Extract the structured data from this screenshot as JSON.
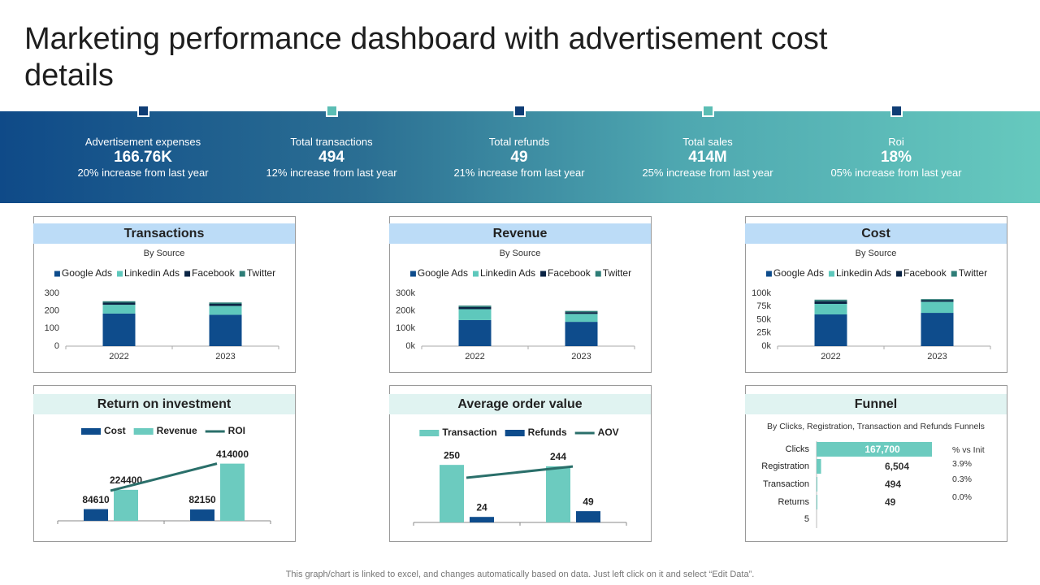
{
  "title": "Marketing performance dashboard with advertisement cost details",
  "kpis": [
    {
      "label": "Advertisement expenses",
      "value": "166.76K",
      "note": "20% increase from last year"
    },
    {
      "label": "Total transactions",
      "value": "494",
      "note": "12% increase from last year"
    },
    {
      "label": "Total refunds",
      "value": "49",
      "note": "21% increase from last year"
    },
    {
      "label": "Total sales",
      "value": "414M",
      "note": "25% increase from last year"
    },
    {
      "label": "Roi",
      "value": "18%",
      "note": "05% increase from last year"
    }
  ],
  "chart_data": [
    {
      "type": "bar",
      "stacked": true,
      "title": "Transactions",
      "subtitle": "By Source",
      "grid": false,
      "categories": [
        "2022",
        "2023"
      ],
      "series": [
        {
          "name": "Google Ads",
          "color": "#0e4c8c",
          "values": [
            185,
            178
          ]
        },
        {
          "name": "Linkedin Ads",
          "color": "#5ec8bc",
          "values": [
            50,
            50
          ]
        },
        {
          "name": "Facebook",
          "color": "#0b2545",
          "values": [
            12,
            12
          ]
        },
        {
          "name": "Twitter",
          "color": "#2e7d77",
          "values": [
            8,
            8
          ]
        }
      ],
      "ylim": [
        0,
        300
      ],
      "yticks": [
        0,
        100,
        200,
        300
      ]
    },
    {
      "type": "bar",
      "stacked": true,
      "title": "Revenue",
      "subtitle": "By Source",
      "grid": false,
      "categories": [
        "2022",
        "2023"
      ],
      "series": [
        {
          "name": "Google Ads",
          "color": "#0e4c8c",
          "values": [
            148000,
            138000
          ]
        },
        {
          "name": "Linkedin Ads",
          "color": "#5ec8bc",
          "values": [
            62000,
            45000
          ]
        },
        {
          "name": "Facebook",
          "color": "#0b2545",
          "values": [
            12000,
            10000
          ]
        },
        {
          "name": "Twitter",
          "color": "#2e7d77",
          "values": [
            8000,
            7000
          ]
        }
      ],
      "ylim": [
        0,
        300000
      ],
      "yticks": [
        {
          "value": 0,
          "label": "0k"
        },
        {
          "value": 100000,
          "label": "100k"
        },
        {
          "value": 200000,
          "label": "200k"
        },
        {
          "value": 300000,
          "label": "300k"
        }
      ]
    },
    {
      "type": "bar",
      "stacked": true,
      "title": "Cost",
      "subtitle": "By Source",
      "grid": false,
      "categories": [
        "2022",
        "2023"
      ],
      "series": [
        {
          "name": "Google Ads",
          "color": "#0e4c8c",
          "values": [
            60000,
            63000
          ]
        },
        {
          "name": "Linkedin Ads",
          "color": "#5ec8bc",
          "values": [
            20000,
            21000
          ]
        },
        {
          "name": "Facebook",
          "color": "#0b2545",
          "values": [
            5000,
            3000
          ]
        },
        {
          "name": "Twitter",
          "color": "#2e7d77",
          "values": [
            3000,
            2000
          ]
        }
      ],
      "ylim": [
        0,
        100000
      ],
      "yticks": [
        {
          "value": 0,
          "label": "0k"
        },
        {
          "value": 25000,
          "label": "25k"
        },
        {
          "value": 50000,
          "label": "50k"
        },
        {
          "value": 75000,
          "label": "75k"
        },
        {
          "value": 100000,
          "label": "100k"
        }
      ]
    },
    {
      "type": "combo",
      "title": "Return on investment",
      "categories": [
        null,
        null
      ],
      "series": [
        {
          "name": "Cost",
          "color": "#0e4c8c",
          "values": [
            84610,
            82150
          ]
        },
        {
          "name": "Revenue",
          "color": "#6ccbbf",
          "values": [
            224400,
            414000
          ]
        },
        {
          "name": "ROI",
          "type": "line",
          "color": "#2a6f6a",
          "values": [
            218000,
            414000
          ]
        }
      ],
      "ylim": [
        0,
        500000
      ]
    },
    {
      "type": "combo",
      "title": "Average order value",
      "categories": [
        null,
        null
      ],
      "series": [
        {
          "name": "Transaction",
          "color": "#6ccbbf",
          "values": [
            250,
            244
          ]
        },
        {
          "name": "Refunds",
          "color": "#0e4c8c",
          "values": [
            24,
            49
          ]
        },
        {
          "name": "AOV",
          "type": "line",
          "color": "#2a6f6a",
          "values": [
            194,
            243
          ]
        }
      ],
      "ylim": [
        0,
        300
      ]
    },
    {
      "type": "funnel",
      "title": "Funnel",
      "subtitle": "By Clicks, Registration, Transaction and  Refunds Funnels",
      "categories": [
        "Clicks",
        "Registration",
        "Transaction",
        "Returns",
        "5"
      ],
      "values": [
        167700,
        6504,
        494,
        49,
        null
      ],
      "value_labels": [
        "167,700",
        "6,504",
        "494",
        "49",
        null
      ],
      "color": "#6ccbbf",
      "xlim": [
        0,
        170000
      ],
      "pct_header": "% vs Init",
      "pct_labels": [
        "3.9%",
        "0.3%",
        "0.0%"
      ]
    }
  ],
  "footer": "This graph/chart is linked to excel, and changes automatically based on data. Just left click on it and select “Edit Data”."
}
